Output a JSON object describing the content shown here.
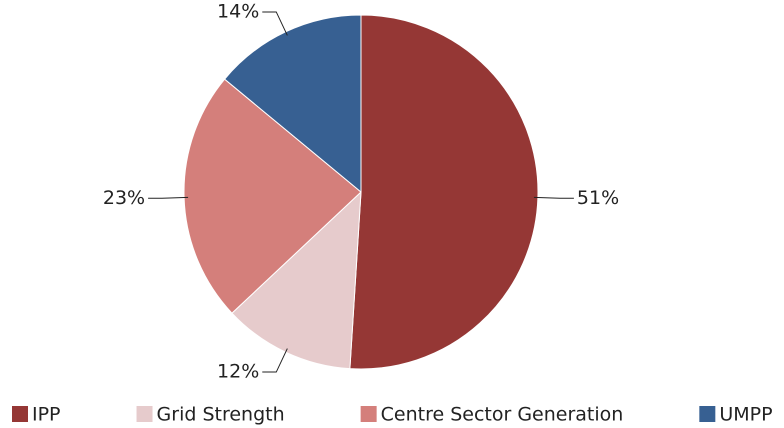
{
  "chart_data": {
    "type": "pie",
    "categories": [
      "IPP",
      "Grid Strength",
      "Centre Sector Generation",
      "UMPP"
    ],
    "values": [
      51,
      12,
      23,
      14
    ],
    "value_labels": [
      "51%",
      "12%",
      "23%",
      "14%"
    ],
    "colors": [
      "#953735",
      "#e6cbcc",
      "#d47f7b",
      "#376092"
    ],
    "legend": "bottom"
  }
}
